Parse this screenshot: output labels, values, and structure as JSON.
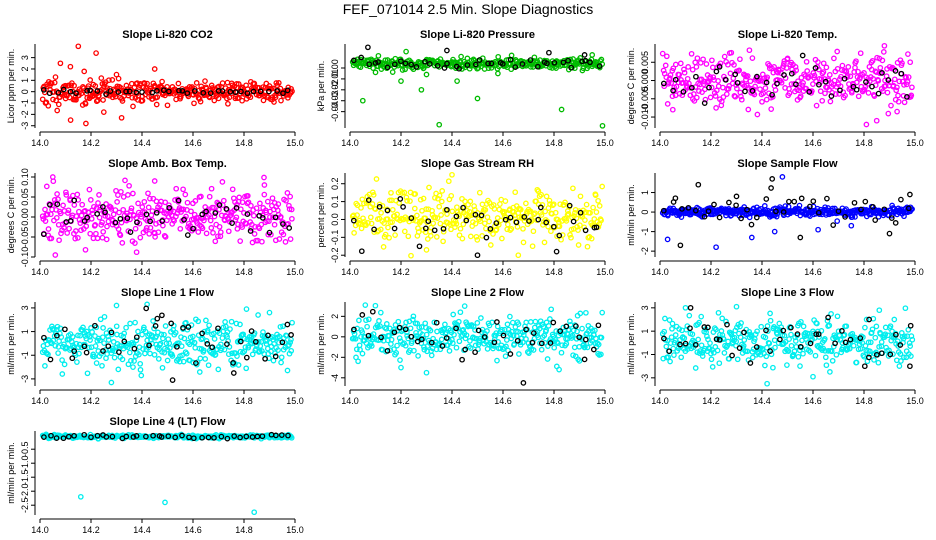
{
  "page_title": "FEF_071014  2.5 Min. Slope Diagnostics",
  "colors": {
    "axis": "#000000",
    "black_points": "#000000",
    "co2": "#ff0000",
    "pressure": "#00bb00",
    "temp": "#ff00ff",
    "rh": "#ffff00",
    "sample_flow": "#0000ff",
    "line_flow": "#00eeee"
  },
  "chart_data": [
    {
      "type": "scatter",
      "title": "Slope Li-820 CO2",
      "ylabel": "Licor ppm per min.",
      "xlim": [
        14.0,
        15.0
      ],
      "ylim": [
        -3.2,
        4.2
      ],
      "xticks": [
        14.0,
        14.2,
        14.4,
        14.6,
        14.8,
        15.0
      ],
      "xtick_labels": [
        "14.0",
        "14.2",
        "14.4",
        "14.6",
        "14.8",
        "15.0"
      ],
      "yticks": [
        -3,
        -2,
        -1,
        0,
        1,
        2,
        3
      ],
      "ytick_labels": [
        "-3",
        "-2",
        "-1",
        "0",
        "1",
        "2",
        "3"
      ],
      "series": [
        {
          "name": "all",
          "color": "#ff0000",
          "pattern": {
            "n": 360,
            "center": 0,
            "spread": 0.45,
            "decay": 0.06,
            "seed": 11
          },
          "extra": [
            [
              14.15,
              4.0
            ],
            [
              14.22,
              3.4
            ],
            [
              14.08,
              2.5
            ],
            [
              14.12,
              -2.5
            ],
            [
              14.18,
              -2.8
            ],
            [
              14.25,
              -1.8
            ],
            [
              14.32,
              -2.3
            ],
            [
              14.45,
              2.0
            ],
            [
              14.3,
              1.5
            ],
            [
              14.5,
              -1.2
            ]
          ]
        },
        {
          "name": "selected",
          "color": "#000000",
          "pattern": {
            "n": 38,
            "center": 0,
            "spread": 0.12,
            "decay": 0.0,
            "seed": 12
          }
        }
      ]
    },
    {
      "type": "scatter",
      "title": "Slope Li-820 Pressure",
      "ylabel": "kPa per min.",
      "xlim": [
        14.0,
        15.0
      ],
      "ylim": [
        -0.055,
        0.022
      ],
      "xticks": [
        14.0,
        14.2,
        14.4,
        14.6,
        14.8,
        15.0
      ],
      "xtick_labels": [
        "14.0",
        "14.2",
        "14.4",
        "14.6",
        "14.8",
        "15.0"
      ],
      "yticks": [
        -0.04,
        -0.03,
        -0.02,
        -0.01,
        0.0
      ],
      "ytick_labels": [
        "-0.04",
        "-0.03",
        "-0.02",
        "-0.01",
        "0.00"
      ],
      "series": [
        {
          "name": "all",
          "color": "#00bb00",
          "pattern": {
            "n": 330,
            "center": 0.004,
            "spread": 0.0025,
            "decay": 0.0,
            "seed": 21
          },
          "extra": [
            [
              14.2,
              -0.012
            ],
            [
              14.1,
              -0.004
            ],
            [
              14.28,
              -0.02
            ],
            [
              14.05,
              -0.03
            ],
            [
              14.3,
              -0.006
            ],
            [
              14.5,
              -0.028
            ],
            [
              14.83,
              -0.038
            ],
            [
              14.42,
              -0.012
            ],
            [
              14.99,
              -0.053
            ],
            [
              14.35,
              -0.052
            ],
            [
              14.58,
              -0.005
            ],
            [
              14.22,
              0.015
            ],
            [
              14.95,
              0.012
            ]
          ]
        },
        {
          "name": "selected",
          "color": "#000000",
          "pattern": {
            "n": 40,
            "center": 0.004,
            "spread": 0.0025,
            "decay": 0.0,
            "seed": 22
          },
          "extra": [
            [
              14.07,
              0.019
            ],
            [
              14.38,
              0.016
            ],
            [
              14.92,
              0.012
            ],
            [
              14.78,
              0.014
            ]
          ]
        }
      ]
    },
    {
      "type": "scatter",
      "title": "Slope Li-820 Temp.",
      "ylabel": "degrees C per min.",
      "xlim": [
        14.0,
        15.0
      ],
      "ylim": [
        -0.013,
        0.01
      ],
      "xticks": [
        14.0,
        14.2,
        14.4,
        14.6,
        14.8,
        15.0
      ],
      "xtick_labels": [
        "14.0",
        "14.2",
        "14.4",
        "14.6",
        "14.8",
        "15.0"
      ],
      "yticks": [
        -0.01,
        -0.005,
        0.0,
        0.005
      ],
      "ytick_labels": [
        "-0.010",
        "-0.005",
        "0.000",
        "0.005"
      ],
      "series": [
        {
          "name": "all",
          "color": "#ff00ff",
          "pattern": {
            "n": 380,
            "center": 0.0,
            "spread": 0.0035,
            "decay": 0.0,
            "seed": 31
          },
          "extra": [
            [
              14.88,
              0.0095
            ],
            [
              14.85,
              -0.011
            ],
            [
              14.93,
              -0.0085
            ],
            [
              14.05,
              -0.008
            ]
          ]
        },
        {
          "name": "selected",
          "color": "#000000",
          "pattern": {
            "n": 40,
            "center": 0.0,
            "spread": 0.0035,
            "decay": 0.0,
            "seed": 32
          }
        }
      ]
    },
    {
      "type": "scatter",
      "title": "Slope Amb. Box Temp.",
      "ylabel": "degrees C per min.",
      "xlim": [
        14.0,
        15.0
      ],
      "ylim": [
        -0.1,
        0.11
      ],
      "xticks": [
        14.0,
        14.2,
        14.4,
        14.6,
        14.8,
        15.0
      ],
      "xtick_labels": [
        "14.0",
        "14.2",
        "14.4",
        "14.6",
        "14.8",
        "15.0"
      ],
      "yticks": [
        -0.1,
        -0.05,
        0.0,
        0.05,
        0.1
      ],
      "ytick_labels": [
        "-0.10",
        "-0.05",
        "0.00",
        "0.05",
        "0.10"
      ],
      "series": [
        {
          "name": "all",
          "color": "#ff00ff",
          "pattern": {
            "n": 380,
            "center": 0.0,
            "spread": 0.035,
            "decay": 0.0,
            "seed": 41
          },
          "extra": [
            [
              14.05,
              0.1
            ],
            [
              14.06,
              -0.095
            ],
            [
              14.45,
              0.09
            ],
            [
              14.88,
              0.08
            ]
          ]
        },
        {
          "name": "selected",
          "color": "#000000",
          "pattern": {
            "n": 40,
            "center": 0.0,
            "spread": 0.022,
            "decay": 0.0,
            "seed": 42
          }
        }
      ]
    },
    {
      "type": "scatter",
      "title": "Slope Gas Stream RH",
      "ylabel": "percent per min.",
      "xlim": [
        14.0,
        15.0
      ],
      "ylim": [
        -0.21,
        0.26
      ],
      "xticks": [
        14.0,
        14.2,
        14.4,
        14.6,
        14.8,
        15.0
      ],
      "xtick_labels": [
        "14.0",
        "14.2",
        "14.4",
        "14.6",
        "14.8",
        "15.0"
      ],
      "yticks": [
        -0.2,
        -0.1,
        0.0,
        0.1,
        0.2
      ],
      "ytick_labels": [
        "-0.2",
        "-0.1",
        "0.0",
        "0.1",
        "0.2"
      ],
      "series": [
        {
          "name": "all",
          "color": "#ffff00",
          "pattern": {
            "n": 360,
            "center": 0.02,
            "spread": 0.07,
            "decay": 0.0,
            "seed": 51
          },
          "extra": [
            [
              14.4,
              0.25
            ],
            [
              14.66,
              -0.2
            ],
            [
              14.3,
              -0.17
            ]
          ]
        },
        {
          "name": "selected",
          "color": "#000000",
          "pattern": {
            "n": 40,
            "center": 0.0,
            "spread": 0.07,
            "decay": 0.0,
            "seed": 52
          },
          "extra": [
            [
              14.5,
              -0.2
            ],
            [
              14.81,
              -0.18
            ]
          ]
        }
      ]
    },
    {
      "type": "scatter",
      "title": "Slope Sample Flow",
      "ylabel": "ml/min per min.",
      "xlim": [
        14.0,
        15.0
      ],
      "ylim": [
        -2.3,
        2.0
      ],
      "xticks": [
        14.0,
        14.2,
        14.4,
        14.6,
        14.8,
        15.0
      ],
      "xtick_labels": [
        "14.0",
        "14.2",
        "14.4",
        "14.6",
        "14.8",
        "15.0"
      ],
      "yticks": [
        -2,
        -1,
        0,
        1
      ],
      "ytick_labels": [
        "-2",
        "-1",
        "0",
        "1"
      ],
      "series": [
        {
          "name": "all",
          "color": "#0000ff",
          "pattern": {
            "n": 380,
            "center": 0.02,
            "spread": 0.12,
            "decay": 0.0,
            "seed": 61
          },
          "extra": [
            [
              14.03,
              -1.4
            ],
            [
              14.22,
              -1.8
            ],
            [
              14.45,
              -1.0
            ],
            [
              14.48,
              1.8
            ],
            [
              14.36,
              -1.3
            ],
            [
              14.62,
              -0.9
            ],
            [
              14.75,
              -0.7
            ]
          ]
        },
        {
          "name": "selected",
          "color": "#000000",
          "pattern": {
            "n": 40,
            "center": 0.1,
            "spread": 0.5,
            "decay": 0.0,
            "seed": 62
          },
          "extra": [
            [
              14.15,
              1.4
            ],
            [
              14.3,
              0.8
            ],
            [
              14.44,
              1.7
            ],
            [
              14.08,
              -1.7
            ],
            [
              14.9,
              -1.1
            ],
            [
              14.55,
              -1.3
            ],
            [
              14.98,
              0.9
            ]
          ]
        }
      ]
    },
    {
      "type": "scatter",
      "title": "Slope Line 1 Flow",
      "ylabel": "ml/min per min.",
      "xlim": [
        14.0,
        15.0
      ],
      "ylim": [
        -3.6,
        3.5
      ],
      "xticks": [
        14.0,
        14.2,
        14.4,
        14.6,
        14.8,
        15.0
      ],
      "xtick_labels": [
        "14.0",
        "14.2",
        "14.4",
        "14.6",
        "14.8",
        "15.0"
      ],
      "yticks": [
        -3,
        -1,
        1,
        3
      ],
      "ytick_labels": [
        "-3",
        "-1",
        "1",
        "3"
      ],
      "series": [
        {
          "name": "all",
          "color": "#00eeee",
          "pattern": {
            "n": 380,
            "center": 0.0,
            "spread": 1.0,
            "decay": 0.0,
            "seed": 71
          },
          "extra": [
            [
              14.3,
              3.2
            ],
            [
              14.42,
              3.3
            ],
            [
              14.28,
              -3.3
            ],
            [
              14.9,
              2.6
            ]
          ]
        },
        {
          "name": "selected",
          "color": "#000000",
          "pattern": {
            "n": 40,
            "center": 0.0,
            "spread": 1.0,
            "decay": 0.0,
            "seed": 72
          },
          "extra": [
            [
              14.52,
              -3.1
            ],
            [
              14.76,
              -2.5
            ],
            [
              14.97,
              1.6
            ],
            [
              14.46,
              2.1
            ]
          ]
        }
      ]
    },
    {
      "type": "scatter",
      "title": "Slope Line 2 Flow",
      "ylabel": "ml/min per min.",
      "xlim": [
        14.0,
        15.0
      ],
      "ylim": [
        -4.8,
        3.4
      ],
      "xticks": [
        14.0,
        14.2,
        14.4,
        14.6,
        14.8,
        15.0
      ],
      "xtick_labels": [
        "14.0",
        "14.2",
        "14.4",
        "14.6",
        "14.8",
        "15.0"
      ],
      "yticks": [
        -4,
        -2,
        0,
        2
      ],
      "ytick_labels": [
        "-4",
        "-2",
        "0",
        "2"
      ],
      "series": [
        {
          "name": "all",
          "color": "#00eeee",
          "pattern": {
            "n": 380,
            "center": 0.0,
            "spread": 1.0,
            "decay": 0.0,
            "seed": 81
          },
          "extra": [
            [
              14.06,
              3.1
            ],
            [
              14.45,
              3.0
            ],
            [
              14.82,
              -3.2
            ],
            [
              14.3,
              -3.5
            ],
            [
              14.2,
              -3.0
            ]
          ]
        },
        {
          "name": "selected",
          "color": "#000000",
          "pattern": {
            "n": 40,
            "center": 0.0,
            "spread": 0.9,
            "decay": 0.0,
            "seed": 82
          },
          "extra": [
            [
              14.68,
              -4.5
            ],
            [
              14.92,
              -2.2
            ]
          ]
        }
      ]
    },
    {
      "type": "scatter",
      "title": "Slope Line 3 Flow",
      "ylabel": "ml/min per min.",
      "xlim": [
        14.0,
        15.0
      ],
      "ylim": [
        -3.7,
        3.5
      ],
      "xticks": [
        14.0,
        14.2,
        14.4,
        14.6,
        14.8,
        15.0
      ],
      "xtick_labels": [
        "14.0",
        "14.2",
        "14.4",
        "14.6",
        "14.8",
        "15.0"
      ],
      "yticks": [
        -3,
        -1,
        1,
        3
      ],
      "ytick_labels": [
        "-3",
        "-1",
        "1",
        "3"
      ],
      "series": [
        {
          "name": "all",
          "color": "#00eeee",
          "pattern": {
            "n": 380,
            "center": 0.0,
            "spread": 1.0,
            "decay": 0.0,
            "seed": 91
          },
          "extra": [
            [
              14.1,
              3.0
            ],
            [
              14.3,
              3.1
            ],
            [
              14.42,
              -3.5
            ],
            [
              14.86,
              2.8
            ],
            [
              14.6,
              -2.9
            ]
          ]
        },
        {
          "name": "selected",
          "color": "#000000",
          "pattern": {
            "n": 40,
            "center": 0.0,
            "spread": 1.0,
            "decay": 0.0,
            "seed": 92
          },
          "extra": [
            [
              14.12,
              3.0
            ],
            [
              14.98,
              -2.0
            ],
            [
              14.82,
              2.0
            ]
          ]
        }
      ]
    },
    {
      "type": "scatter",
      "title": "Slope Line 4 (LT) Flow",
      "ylabel": "ml/min per min.",
      "xlim": [
        14.0,
        15.0
      ],
      "ylim": [
        -2.85,
        0.15
      ],
      "xticks": [
        14.0,
        14.2,
        14.4,
        14.6,
        14.8,
        15.0
      ],
      "xtick_labels": [
        "14.0",
        "14.2",
        "14.4",
        "14.6",
        "14.8",
        "15.0"
      ],
      "yticks": [
        -2.5,
        -2.0,
        -1.5,
        -1.0,
        -0.5
      ],
      "ytick_labels": [
        "-2.5",
        "-2.0",
        "-1.5",
        "-1.0",
        "-0.5"
      ],
      "series": [
        {
          "name": "all",
          "color": "#00eeee",
          "pattern": {
            "n": 300,
            "center": -0.05,
            "spread": 0.03,
            "decay": 0.0,
            "seed": 101
          },
          "extra": [
            [
              14.16,
              -2.2
            ],
            [
              14.49,
              -2.4
            ],
            [
              14.84,
              -2.75
            ]
          ]
        },
        {
          "name": "selected",
          "color": "#000000",
          "pattern": {
            "n": 40,
            "center": -0.05,
            "spread": 0.03,
            "decay": 0.0,
            "seed": 102
          }
        }
      ]
    }
  ]
}
